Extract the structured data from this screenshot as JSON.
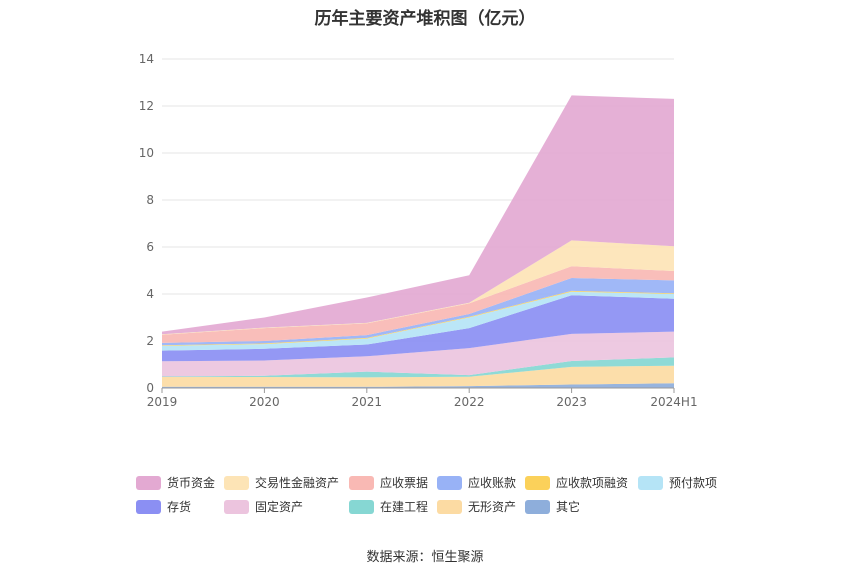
{
  "chart_data": {
    "type": "area",
    "stacked": true,
    "title": "历年主要资产堆积图（亿元）",
    "xlabel": "",
    "ylabel": "",
    "categories": [
      "2019",
      "2020",
      "2021",
      "2022",
      "2023",
      "2024H1"
    ],
    "ylim": [
      0,
      14
    ],
    "yticks": [
      0,
      2,
      4,
      6,
      8,
      10,
      12,
      14
    ],
    "grid": true,
    "legend_position": "bottom",
    "series": [
      {
        "name": "其它",
        "color": "#8eaedb",
        "values": [
          0.05,
          0.05,
          0.05,
          0.08,
          0.15,
          0.2
        ]
      },
      {
        "name": "无形资产",
        "color": "#fcdba3",
        "values": [
          0.42,
          0.42,
          0.4,
          0.4,
          0.75,
          0.75
        ]
      },
      {
        "name": "在建工程",
        "color": "#86d7d3",
        "values": [
          0.02,
          0.05,
          0.25,
          0.07,
          0.25,
          0.35
        ]
      },
      {
        "name": "固定资产",
        "color": "#ecc4de",
        "values": [
          0.65,
          0.65,
          0.65,
          1.15,
          1.15,
          1.1
        ]
      },
      {
        "name": "存货",
        "color": "#8b8ff3",
        "values": [
          0.45,
          0.5,
          0.5,
          0.85,
          1.65,
          1.4
        ]
      },
      {
        "name": "预付款项",
        "color": "#b5e4f6",
        "values": [
          0.2,
          0.2,
          0.25,
          0.45,
          0.15,
          0.2
        ]
      },
      {
        "name": "应收款项融资",
        "color": "#fbd15a",
        "values": [
          0.03,
          0.03,
          0.03,
          0.03,
          0.03,
          0.03
        ]
      },
      {
        "name": "应收账款",
        "color": "#98b2f6",
        "values": [
          0.1,
          0.1,
          0.12,
          0.12,
          0.55,
          0.55
        ]
      },
      {
        "name": "应收票据",
        "color": "#f9b9b4",
        "values": [
          0.35,
          0.55,
          0.5,
          0.45,
          0.5,
          0.4
        ]
      },
      {
        "name": "交易性金融资产",
        "color": "#fde4b6",
        "values": [
          0.02,
          0.02,
          0.02,
          0.03,
          1.1,
          1.05
        ]
      },
      {
        "name": "货币资金",
        "color": "#e3a9d2",
        "values": [
          0.11,
          0.43,
          1.08,
          1.17,
          6.17,
          6.27
        ]
      }
    ],
    "legend_order": [
      "货币资金",
      "交易性金融资产",
      "应收票据",
      "应收账款",
      "应收款项融资",
      "预付款项",
      "存货",
      "固定资产",
      "在建工程",
      "无形资产",
      "其它"
    ],
    "source": "数据来源：恒生聚源"
  }
}
